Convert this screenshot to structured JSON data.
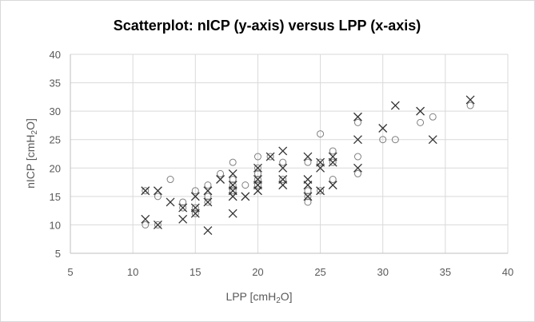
{
  "chart_data": {
    "type": "scatter",
    "title": "Scatterplot: nICP (y-axis) versus LPP (x-axis)",
    "xlabel_main": "LPP [cmH",
    "xlabel_sub": "2",
    "xlabel_end": "O]",
    "ylabel_main": "nICP [cmH",
    "ylabel_sub": "2",
    "ylabel_end": "O]",
    "xlim": [
      5,
      40
    ],
    "ylim": [
      5,
      40
    ],
    "x_ticks": [
      5,
      10,
      15,
      20,
      25,
      30,
      35,
      40
    ],
    "y_ticks": [
      5,
      10,
      15,
      20,
      25,
      30,
      35,
      40
    ],
    "grid": true,
    "colors": {
      "marker": "#333333",
      "grid": "#d9d9d9",
      "axis": "#bfbfbf"
    },
    "series": [
      {
        "marker": "circle",
        "points": [
          [
            11,
            10
          ],
          [
            11,
            16
          ],
          [
            12,
            15
          ],
          [
            12,
            10
          ],
          [
            13,
            18
          ],
          [
            14,
            14
          ],
          [
            14,
            13
          ],
          [
            15,
            16
          ],
          [
            15,
            12
          ],
          [
            15,
            13
          ],
          [
            16,
            17
          ],
          [
            16,
            15
          ],
          [
            16,
            14
          ],
          [
            17,
            19
          ],
          [
            18,
            21
          ],
          [
            18,
            18
          ],
          [
            18,
            16
          ],
          [
            18,
            17
          ],
          [
            19,
            17
          ],
          [
            20,
            22
          ],
          [
            20,
            20
          ],
          [
            20,
            19
          ],
          [
            20,
            18
          ],
          [
            20,
            17
          ],
          [
            21,
            22
          ],
          [
            22,
            21
          ],
          [
            22,
            18
          ],
          [
            24,
            21
          ],
          [
            24,
            15
          ],
          [
            24,
            14
          ],
          [
            24,
            16
          ],
          [
            25,
            26
          ],
          [
            25,
            16
          ],
          [
            25,
            21
          ],
          [
            26,
            23
          ],
          [
            26,
            18
          ],
          [
            26,
            21
          ],
          [
            28,
            28
          ],
          [
            28,
            22
          ],
          [
            28,
            19
          ],
          [
            30,
            25
          ],
          [
            31,
            25
          ],
          [
            33,
            28
          ],
          [
            34,
            29
          ],
          [
            37,
            31
          ]
        ]
      },
      {
        "marker": "x",
        "points": [
          [
            11,
            11
          ],
          [
            11,
            16
          ],
          [
            12,
            16
          ],
          [
            12,
            10
          ],
          [
            13,
            14
          ],
          [
            14,
            11
          ],
          [
            14,
            13
          ],
          [
            15,
            15
          ],
          [
            15,
            12
          ],
          [
            15,
            13
          ],
          [
            16,
            9
          ],
          [
            16,
            14
          ],
          [
            16,
            16
          ],
          [
            17,
            18
          ],
          [
            18,
            19
          ],
          [
            18,
            17
          ],
          [
            18,
            16
          ],
          [
            18,
            15
          ],
          [
            18,
            12
          ],
          [
            19,
            15
          ],
          [
            20,
            20
          ],
          [
            20,
            18
          ],
          [
            20,
            17
          ],
          [
            20,
            16
          ],
          [
            21,
            22
          ],
          [
            22,
            23
          ],
          [
            22,
            20
          ],
          [
            22,
            17
          ],
          [
            22,
            18
          ],
          [
            24,
            22
          ],
          [
            24,
            18
          ],
          [
            24,
            17
          ],
          [
            24,
            15
          ],
          [
            25,
            20
          ],
          [
            25,
            21
          ],
          [
            25,
            16
          ],
          [
            26,
            22
          ],
          [
            26,
            21
          ],
          [
            26,
            17
          ],
          [
            28,
            29
          ],
          [
            28,
            25
          ],
          [
            28,
            20
          ],
          [
            30,
            27
          ],
          [
            31,
            31
          ],
          [
            33,
            30
          ],
          [
            34,
            25
          ],
          [
            37,
            32
          ]
        ]
      }
    ]
  }
}
